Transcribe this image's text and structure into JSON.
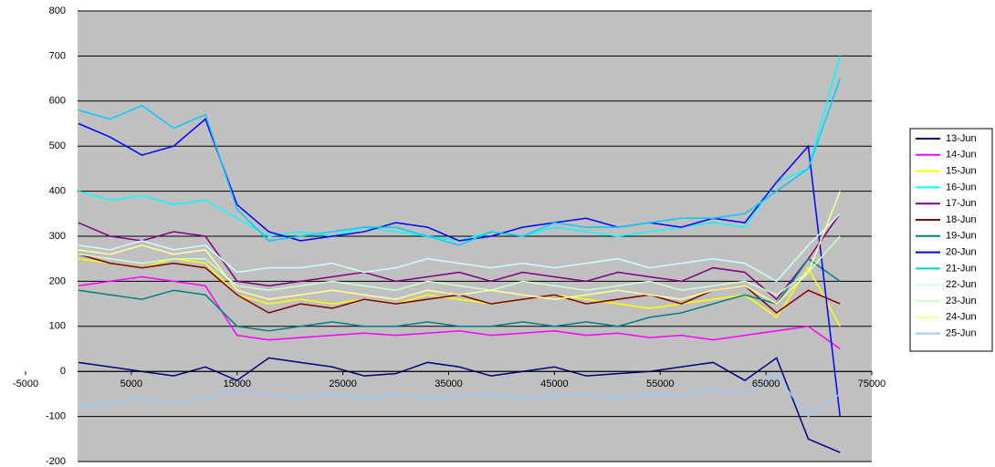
{
  "chart_data": {
    "type": "line",
    "x": [
      0,
      3000,
      6000,
      9000,
      12000,
      15000,
      18000,
      21000,
      24000,
      27000,
      30000,
      33000,
      36000,
      39000,
      42000,
      45000,
      48000,
      51000,
      54000,
      57000,
      60000,
      63000,
      66000,
      69000,
      72000
    ],
    "xlim": [
      -5000,
      75000
    ],
    "xticks": [
      -5000,
      5000,
      15000,
      25000,
      35000,
      45000,
      55000,
      65000,
      75000
    ],
    "ylim": [
      -200,
      800
    ],
    "yticks": [
      -200,
      -100,
      0,
      100,
      200,
      300,
      400,
      500,
      600,
      700,
      800
    ],
    "grid": true,
    "legend": "right",
    "series": [
      {
        "name": "13-Jun",
        "color": "#000080",
        "values": [
          20,
          10,
          0,
          -10,
          10,
          -20,
          30,
          20,
          10,
          -10,
          -5,
          20,
          10,
          -10,
          0,
          10,
          -10,
          -5,
          0,
          10,
          20,
          -20,
          30,
          -150,
          -180
        ]
      },
      {
        "name": "14-Jun",
        "color": "#ff00ff",
        "values": [
          190,
          200,
          210,
          200,
          190,
          80,
          70,
          75,
          80,
          85,
          80,
          85,
          90,
          80,
          85,
          90,
          80,
          85,
          75,
          80,
          70,
          80,
          90,
          100,
          50
        ]
      },
      {
        "name": "15-Jun",
        "color": "#ffff00",
        "values": [
          250,
          240,
          230,
          250,
          240,
          170,
          150,
          160,
          150,
          160,
          150,
          170,
          160,
          150,
          160,
          170,
          160,
          150,
          140,
          150,
          160,
          170,
          120,
          230,
          100
        ]
      },
      {
        "name": "16-Jun",
        "color": "#00ffff",
        "values": [
          400,
          380,
          390,
          370,
          380,
          340,
          300,
          310,
          300,
          320,
          310,
          300,
          290,
          310,
          300,
          320,
          310,
          300,
          310,
          320,
          330,
          320,
          420,
          450,
          700
        ]
      },
      {
        "name": "17-Jun",
        "color": "#800080",
        "values": [
          330,
          300,
          290,
          310,
          300,
          200,
          190,
          200,
          210,
          220,
          200,
          210,
          220,
          200,
          220,
          210,
          200,
          220,
          210,
          200,
          230,
          220,
          160,
          250,
          350
        ]
      },
      {
        "name": "18-Jun",
        "color": "#800000",
        "values": [
          260,
          240,
          230,
          240,
          230,
          170,
          130,
          150,
          140,
          160,
          150,
          160,
          170,
          150,
          160,
          170,
          150,
          160,
          170,
          150,
          180,
          190,
          130,
          180,
          150
        ]
      },
      {
        "name": "19-Jun",
        "color": "#008080",
        "values": [
          180,
          170,
          160,
          180,
          170,
          100,
          90,
          100,
          110,
          100,
          100,
          110,
          100,
          100,
          110,
          100,
          110,
          100,
          120,
          130,
          150,
          170,
          150,
          250,
          200
        ]
      },
      {
        "name": "20-Jun",
        "color": "#0000ff",
        "values": [
          550,
          520,
          480,
          500,
          560,
          370,
          310,
          290,
          300,
          310,
          330,
          320,
          290,
          300,
          320,
          330,
          340,
          320,
          330,
          320,
          340,
          330,
          420,
          500,
          -100
        ]
      },
      {
        "name": "21-Jun",
        "color": "#00ccff",
        "values": [
          580,
          560,
          590,
          540,
          570,
          360,
          290,
          300,
          310,
          320,
          320,
          300,
          280,
          310,
          300,
          330,
          320,
          320,
          330,
          340,
          340,
          350,
          400,
          450,
          650
        ]
      },
      {
        "name": "22-Jun",
        "color": "#ccffff",
        "values": [
          280,
          270,
          290,
          270,
          280,
          220,
          230,
          230,
          240,
          220,
          230,
          250,
          240,
          230,
          240,
          230,
          240,
          250,
          230,
          240,
          250,
          240,
          200,
          280,
          350
        ]
      },
      {
        "name": "23-Jun",
        "color": "#ccffcc",
        "values": [
          260,
          250,
          240,
          250,
          250,
          190,
          180,
          190,
          200,
          190,
          180,
          200,
          190,
          180,
          200,
          190,
          180,
          190,
          200,
          180,
          190,
          200,
          170,
          220,
          300
        ]
      },
      {
        "name": "24-Jun",
        "color": "#ffff99",
        "values": [
          270,
          260,
          280,
          260,
          270,
          180,
          160,
          170,
          180,
          170,
          160,
          180,
          170,
          180,
          170,
          160,
          170,
          180,
          170,
          160,
          180,
          190,
          150,
          220,
          400
        ]
      },
      {
        "name": "25-Jun",
        "color": "#99ccff",
        "values": [
          -80,
          -70,
          -60,
          -70,
          -60,
          -40,
          -50,
          -60,
          -50,
          -60,
          -50,
          -60,
          -55,
          -50,
          -60,
          -55,
          -50,
          -60,
          -50,
          -55,
          -40,
          -50,
          -10,
          -100,
          -50
        ]
      }
    ]
  }
}
